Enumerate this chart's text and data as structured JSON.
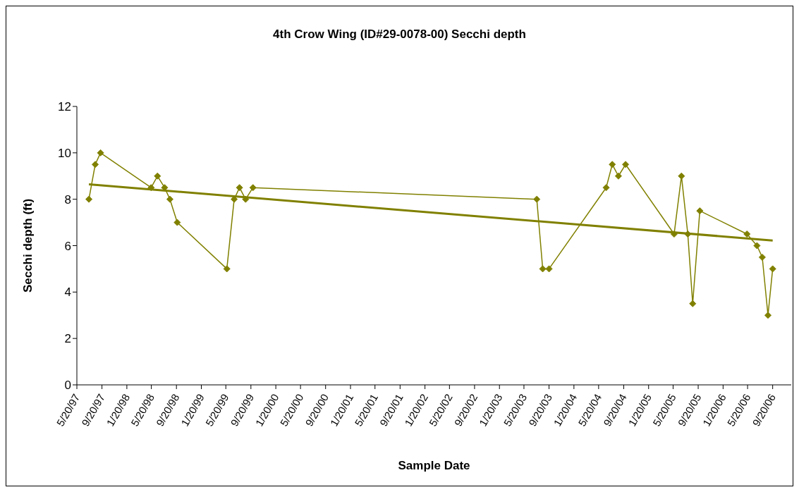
{
  "chart_data": {
    "type": "line",
    "title": "4th Crow Wing (ID#29-0078-00) Secchi depth",
    "xlabel": "Sample Date",
    "ylabel": "Secchi depth (ft)",
    "series": [
      {
        "color": "#808000",
        "marker": "diamond",
        "x": [
          "1997-07-18",
          "1997-08-18",
          "1997-09-13",
          "1998-05-19",
          "1998-06-19",
          "1998-07-24",
          "1998-08-19",
          "1998-09-24",
          "1999-05-25",
          "1999-06-30",
          "1999-07-26",
          "1999-08-25",
          "1999-09-30",
          "2003-07-22",
          "2003-08-20",
          "2003-09-20",
          "2004-06-26",
          "2004-07-26",
          "2004-08-25",
          "2004-09-29",
          "2005-05-25",
          "2005-06-30",
          "2005-07-31",
          "2005-08-24",
          "2005-09-28",
          "2006-05-17",
          "2006-07-05",
          "2006-07-31",
          "2006-08-28",
          "2006-09-20"
        ],
        "values": [
          8,
          9.5,
          10,
          8.5,
          9,
          8.5,
          8,
          7,
          5,
          8,
          8.5,
          8,
          8.5,
          8,
          5,
          5,
          8.5,
          9.5,
          9,
          9.5,
          6.5,
          9,
          6.5,
          3.5,
          7.5,
          6.5,
          6,
          5.5,
          3,
          5
        ]
      },
      {
        "color": "#808000",
        "marker": "none",
        "x": [
          "1997-07-18",
          "2006-09-20"
        ],
        "values": [
          8.64,
          6.22
        ]
      }
    ],
    "ylim": [
      0,
      12
    ],
    "yticks": [
      0,
      2,
      4,
      6,
      8,
      10,
      12
    ],
    "xlim": [
      "1997-05-20",
      "2006-12-20"
    ],
    "xticks": [
      {
        "value": "1997-05-20",
        "label": "5/20/97"
      },
      {
        "value": "1997-09-20",
        "label": "9/20/97"
      },
      {
        "value": "1998-01-20",
        "label": "1/20/98"
      },
      {
        "value": "1998-05-20",
        "label": "5/20/98"
      },
      {
        "value": "1998-09-20",
        "label": "9/20/98"
      },
      {
        "value": "1999-01-20",
        "label": "1/20/99"
      },
      {
        "value": "1999-05-20",
        "label": "5/20/99"
      },
      {
        "value": "1999-09-20",
        "label": "9/20/99"
      },
      {
        "value": "2000-01-20",
        "label": "1/20/00"
      },
      {
        "value": "2000-05-20",
        "label": "5/20/00"
      },
      {
        "value": "2000-09-20",
        "label": "9/20/00"
      },
      {
        "value": "2001-01-20",
        "label": "1/20/01"
      },
      {
        "value": "2001-05-20",
        "label": "5/20/01"
      },
      {
        "value": "2001-09-20",
        "label": "9/20/01"
      },
      {
        "value": "2002-01-20",
        "label": "1/20/02"
      },
      {
        "value": "2002-05-20",
        "label": "5/20/02"
      },
      {
        "value": "2002-09-20",
        "label": "9/20/02"
      },
      {
        "value": "2003-01-20",
        "label": "1/20/03"
      },
      {
        "value": "2003-05-20",
        "label": "5/20/03"
      },
      {
        "value": "2003-09-20",
        "label": "9/20/03"
      },
      {
        "value": "2004-01-20",
        "label": "1/20/04"
      },
      {
        "value": "2004-05-20",
        "label": "5/20/04"
      },
      {
        "value": "2004-09-20",
        "label": "9/20/04"
      },
      {
        "value": "2005-01-20",
        "label": "1/20/05"
      },
      {
        "value": "2005-05-20",
        "label": "5/20/05"
      },
      {
        "value": "2005-09-20",
        "label": "9/20/05"
      },
      {
        "value": "2006-01-20",
        "label": "1/20/06"
      },
      {
        "value": "2006-05-20",
        "label": "5/20/06"
      },
      {
        "value": "2006-09-20",
        "label": "9/20/06"
      }
    ],
    "grid": false,
    "legend": false
  }
}
